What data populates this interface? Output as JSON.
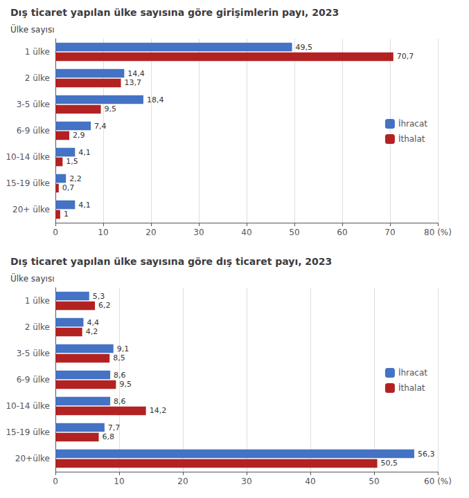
{
  "chart_data": [
    {
      "type": "bar",
      "orientation": "horizontal",
      "title": "Dış ticaret yapılan ülke sayısına göre girişimlerin payı, 2023",
      "ylabel": "Ülke sayısı",
      "categories": [
        "1 ülke",
        "2 ülke",
        "3-5 ülke",
        "6-9 ülke",
        "10-14 ülke",
        "15-19 ülke",
        "20+ ülke"
      ],
      "series": [
        {
          "name": "İhracat",
          "color": "#4472C4",
          "values": [
            49.5,
            14.4,
            18.4,
            7.4,
            4.1,
            2.2,
            4.1
          ],
          "value_labels": [
            "49,5",
            "14,4",
            "18,4",
            "7,4",
            "4,1",
            "2,2",
            "4,1"
          ]
        },
        {
          "name": "İthalat",
          "color": "#B22222",
          "values": [
            70.7,
            13.7,
            9.5,
            2.9,
            1.5,
            0.7,
            1.0
          ],
          "value_labels": [
            "70,7",
            "13,7",
            "9,5",
            "2,9",
            "1,5",
            "0,7",
            "1"
          ]
        }
      ],
      "xlim": [
        0,
        80
      ],
      "xticks": [
        0,
        10,
        20,
        30,
        40,
        50,
        60,
        70,
        {
          "value": 80,
          "label": "80 (%)"
        }
      ],
      "grid": true,
      "legend": "right",
      "data_labels": true
    },
    {
      "type": "bar",
      "orientation": "horizontal",
      "title": "Dış ticaret yapılan ülke sayısına göre dış ticaret payı, 2023",
      "ylabel": "Ülke sayısı",
      "categories": [
        "1 ülke",
        "2 ülke",
        "3-5 ülke",
        "6-9 ülke",
        "10-14 ülke",
        "15-19 ülke",
        "20+ülke"
      ],
      "series": [
        {
          "name": "İhracat",
          "color": "#4472C4",
          "values": [
            5.3,
            4.4,
            9.1,
            8.6,
            8.6,
            7.7,
            56.3
          ],
          "value_labels": [
            "5,3",
            "4,4",
            "9,1",
            "8,6",
            "8,6",
            "7,7",
            "56,3"
          ]
        },
        {
          "name": "İthalat",
          "color": "#B22222",
          "values": [
            6.2,
            4.2,
            8.5,
            9.5,
            14.2,
            6.8,
            50.5
          ],
          "value_labels": [
            "6,2",
            "4,2",
            "8,5",
            "9,5",
            "14,2",
            "6,8",
            "50,5"
          ]
        }
      ],
      "xlim": [
        0,
        60
      ],
      "xticks": [
        0,
        10,
        20,
        30,
        40,
        50,
        {
          "value": 60,
          "label": "60 (%)"
        }
      ],
      "grid": true,
      "legend": "right",
      "data_labels": true
    }
  ]
}
